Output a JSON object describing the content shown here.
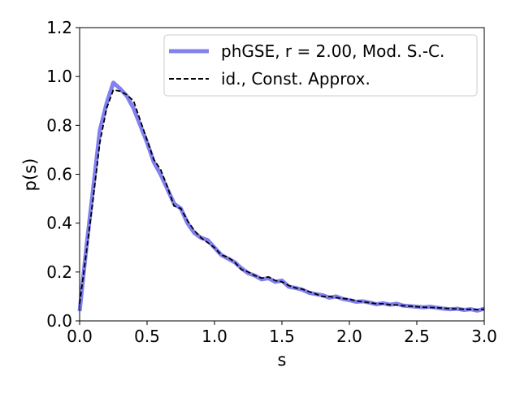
{
  "chart_data": {
    "type": "line",
    "xlabel": "s",
    "ylabel": "p(s)",
    "xlim": [
      0,
      3
    ],
    "ylim": [
      0,
      1.2
    ],
    "xticks": [
      "0.0",
      "0.5",
      "1.0",
      "1.5",
      "2.0",
      "2.5",
      "3.0"
    ],
    "yticks": [
      "0.0",
      "0.2",
      "0.4",
      "0.6",
      "0.8",
      "1.0",
      "1.2"
    ],
    "legend_position": "top-right",
    "grid": false,
    "series": [
      {
        "name": "phGSE, r = 2.00, Mod. S.-C.",
        "style": "solid",
        "color": "#8080f0",
        "x": [
          0.0,
          0.05,
          0.1,
          0.15,
          0.2,
          0.25,
          0.3,
          0.35,
          0.4,
          0.45,
          0.5,
          0.55,
          0.6,
          0.65,
          0.7,
          0.75,
          0.8,
          0.85,
          0.9,
          0.95,
          1.0,
          1.05,
          1.1,
          1.15,
          1.2,
          1.25,
          1.3,
          1.35,
          1.4,
          1.45,
          1.5,
          1.55,
          1.6,
          1.65,
          1.7,
          1.75,
          1.8,
          1.85,
          1.9,
          1.95,
          2.0,
          2.05,
          2.1,
          2.15,
          2.2,
          2.25,
          2.3,
          2.35,
          2.4,
          2.45,
          2.5,
          2.55,
          2.6,
          2.65,
          2.7,
          2.75,
          2.8,
          2.85,
          2.9,
          2.95,
          3.0
        ],
        "y": [
          0.04,
          0.3,
          0.54,
          0.78,
          0.89,
          0.975,
          0.95,
          0.92,
          0.87,
          0.8,
          0.73,
          0.65,
          0.6,
          0.54,
          0.48,
          0.46,
          0.4,
          0.36,
          0.34,
          0.33,
          0.3,
          0.27,
          0.255,
          0.24,
          0.215,
          0.195,
          0.185,
          0.17,
          0.175,
          0.16,
          0.165,
          0.14,
          0.135,
          0.128,
          0.115,
          0.11,
          0.105,
          0.095,
          0.1,
          0.09,
          0.085,
          0.078,
          0.08,
          0.075,
          0.068,
          0.072,
          0.066,
          0.07,
          0.062,
          0.06,
          0.058,
          0.056,
          0.058,
          0.054,
          0.05,
          0.048,
          0.05,
          0.045,
          0.048,
          0.042,
          0.05
        ]
      },
      {
        "name": "id., Const. Approx.",
        "style": "dashed",
        "color": "#000000",
        "x": [
          0.0,
          0.05,
          0.1,
          0.15,
          0.2,
          0.25,
          0.3,
          0.35,
          0.4,
          0.45,
          0.5,
          0.55,
          0.6,
          0.65,
          0.7,
          0.75,
          0.8,
          0.85,
          0.9,
          0.95,
          1.0,
          1.05,
          1.1,
          1.15,
          1.2,
          1.25,
          1.3,
          1.35,
          1.4,
          1.45,
          1.5,
          1.55,
          1.6,
          1.65,
          1.7,
          1.75,
          1.8,
          1.85,
          1.9,
          1.95,
          2.0,
          2.05,
          2.1,
          2.15,
          2.2,
          2.25,
          2.3,
          2.35,
          2.4,
          2.45,
          2.5,
          2.55,
          2.6,
          2.65,
          2.7,
          2.75,
          2.8,
          2.85,
          2.9,
          2.95,
          3.0
        ],
        "y": [
          0.07,
          0.28,
          0.5,
          0.73,
          0.87,
          0.945,
          0.94,
          0.925,
          0.9,
          0.82,
          0.74,
          0.66,
          0.62,
          0.55,
          0.47,
          0.46,
          0.41,
          0.37,
          0.34,
          0.32,
          0.3,
          0.27,
          0.26,
          0.24,
          0.21,
          0.2,
          0.185,
          0.175,
          0.18,
          0.165,
          0.16,
          0.145,
          0.135,
          0.13,
          0.12,
          0.11,
          0.1,
          0.1,
          0.095,
          0.092,
          0.088,
          0.082,
          0.078,
          0.074,
          0.07,
          0.07,
          0.066,
          0.065,
          0.062,
          0.06,
          0.058,
          0.056,
          0.055,
          0.054,
          0.052,
          0.05,
          0.049,
          0.048,
          0.047,
          0.046,
          0.048
        ]
      }
    ]
  }
}
